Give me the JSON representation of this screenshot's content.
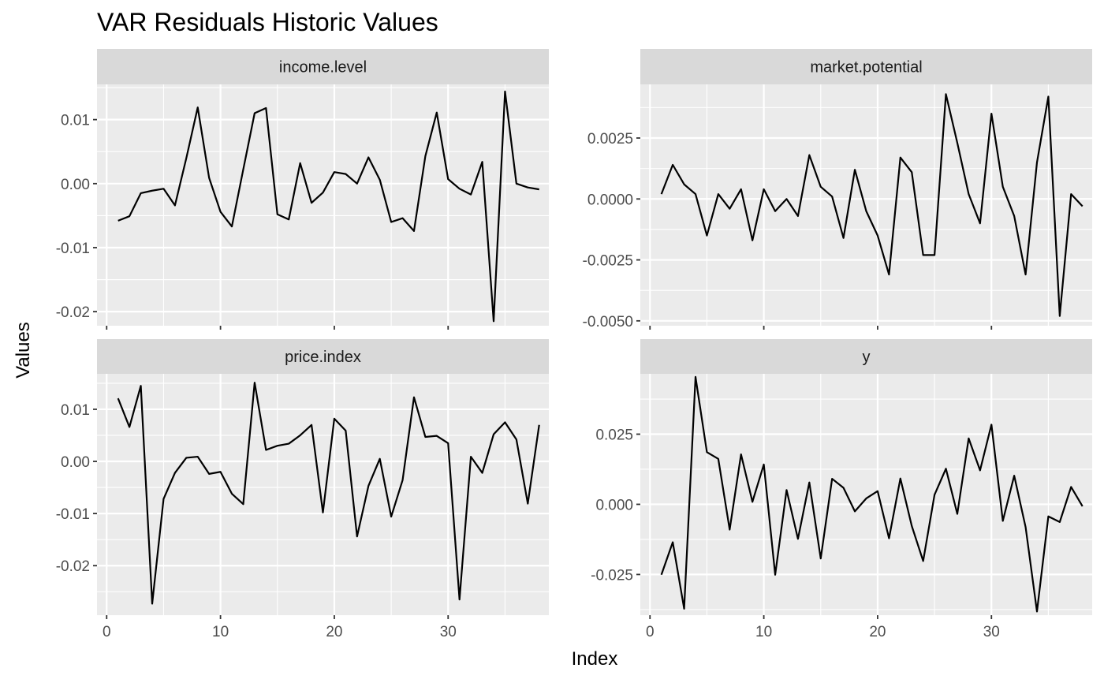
{
  "chart_data": {
    "type": "line",
    "title": "VAR Residuals Historic Values",
    "xlabel": "Index",
    "ylabel": "Values",
    "grid": true,
    "legend": "none",
    "x_shared": true,
    "xlim": [
      -0.85,
      38.85
    ],
    "x_breaks": [
      0,
      10,
      20,
      30
    ],
    "x_tick_labels": [
      "0",
      "10",
      "20",
      "30"
    ],
    "line_color": "#000000",
    "panel_background": "#ebebeb",
    "strip_background": "#d9d9d9",
    "panels": [
      {
        "name": "income.level",
        "ylim": [
          -0.0222,
          0.0155
        ],
        "y_breaks": [
          -0.02,
          -0.01,
          0.0,
          0.01
        ],
        "y_tick_labels": [
          "-0.02",
          "-0.01",
          "0.00",
          "0.01"
        ],
        "x": [
          1,
          2,
          3,
          4,
          5,
          6,
          7,
          8,
          9,
          10,
          11,
          12,
          13,
          14,
          15,
          16,
          17,
          18,
          19,
          20,
          21,
          22,
          23,
          24,
          25,
          26,
          27,
          28,
          29,
          30,
          31,
          32,
          33,
          34,
          35,
          36,
          37,
          38
        ],
        "y": [
          -0.0058,
          -0.0051,
          -0.0015,
          -0.0011,
          -0.0008,
          -0.0034,
          0.004,
          0.0119,
          0.0009,
          -0.0044,
          -0.0067,
          0.0022,
          0.011,
          0.0118,
          -0.0048,
          -0.0056,
          0.0032,
          -0.003,
          -0.0014,
          0.0018,
          0.0015,
          0.0,
          0.0041,
          0.0006,
          -0.006,
          -0.0054,
          -0.0074,
          0.0043,
          0.0111,
          0.0007,
          -0.0008,
          -0.0017,
          0.0034,
          -0.0215,
          0.0144,
          0.0,
          -0.0006,
          -0.0009
        ]
      },
      {
        "name": "market.potential",
        "ylim": [
          -0.0052,
          0.0047
        ],
        "y_breaks": [
          -0.005,
          -0.0025,
          0.0,
          0.0025
        ],
        "y_tick_labels": [
          "-0.0050",
          "-0.0025",
          "0.0000",
          "0.0025"
        ],
        "x": [
          1,
          2,
          3,
          4,
          5,
          6,
          7,
          8,
          9,
          10,
          11,
          12,
          13,
          14,
          15,
          16,
          17,
          18,
          19,
          20,
          21,
          22,
          23,
          24,
          25,
          26,
          27,
          28,
          29,
          30,
          31,
          32,
          33,
          34,
          35,
          36,
          37,
          38
        ],
        "y": [
          0.0002,
          0.0014,
          0.0006,
          0.0002,
          -0.0015,
          0.0002,
          -0.0004,
          0.0004,
          -0.0017,
          0.0004,
          -0.0005,
          0.0,
          -0.0007,
          0.0018,
          0.0005,
          0.0001,
          -0.0016,
          0.0012,
          -0.0005,
          -0.0015,
          -0.0031,
          0.0017,
          0.0011,
          -0.0023,
          -0.0023,
          0.0043,
          0.0023,
          0.0002,
          -0.001,
          0.0035,
          0.0005,
          -0.0007,
          -0.0031,
          0.0015,
          0.0042,
          -0.0048,
          0.0002,
          -0.0003
        ]
      },
      {
        "name": "price.index",
        "ylim": [
          -0.0295,
          0.0168
        ],
        "y_breaks": [
          -0.02,
          -0.01,
          0.0,
          0.01
        ],
        "y_tick_labels": [
          "-0.02",
          "-0.01",
          "0.00",
          "0.01"
        ],
        "x": [
          1,
          2,
          3,
          4,
          5,
          6,
          7,
          8,
          9,
          10,
          11,
          12,
          13,
          14,
          15,
          16,
          17,
          18,
          19,
          20,
          21,
          22,
          23,
          24,
          25,
          26,
          27,
          28,
          29,
          30,
          31,
          32,
          33,
          34,
          35,
          36,
          37,
          38
        ],
        "y": [
          0.0121,
          0.0066,
          0.0145,
          -0.0273,
          -0.0072,
          -0.0022,
          0.0007,
          0.0009,
          -0.0024,
          -0.002,
          -0.0062,
          -0.0082,
          0.0151,
          0.0022,
          0.003,
          0.0034,
          0.005,
          0.007,
          -0.0098,
          0.0082,
          0.0059,
          -0.0144,
          -0.0047,
          0.0005,
          -0.0106,
          -0.0036,
          0.0123,
          0.0047,
          0.0049,
          0.0035,
          -0.0265,
          0.0009,
          -0.0022,
          0.0052,
          0.0075,
          0.0042,
          -0.0081,
          0.007
        ]
      },
      {
        "name": "y",
        "ylim": [
          -0.0395,
          0.0465
        ],
        "y_breaks": [
          -0.025,
          0.0,
          0.025
        ],
        "y_tick_labels": [
          "-0.025",
          "0.000",
          "0.025"
        ],
        "x": [
          1,
          2,
          3,
          4,
          5,
          6,
          7,
          8,
          9,
          10,
          11,
          12,
          13,
          14,
          15,
          16,
          17,
          18,
          19,
          20,
          21,
          22,
          23,
          24,
          25,
          26,
          27,
          28,
          29,
          30,
          31,
          32,
          33,
          34,
          35,
          36,
          37,
          38
        ],
        "y": [
          -0.0251,
          -0.0135,
          -0.0372,
          0.0454,
          0.0186,
          0.0162,
          -0.009,
          0.0178,
          0.0009,
          0.0142,
          -0.0251,
          0.0051,
          -0.0123,
          0.0078,
          -0.0193,
          0.0091,
          0.0059,
          -0.0025,
          0.0021,
          0.0047,
          -0.0121,
          0.0092,
          -0.0077,
          -0.0202,
          0.0034,
          0.0127,
          -0.0034,
          0.0235,
          0.0121,
          0.0284,
          -0.0059,
          0.0102,
          -0.0081,
          -0.0382,
          -0.0043,
          -0.0063,
          0.0062,
          -0.0007
        ]
      }
    ]
  }
}
